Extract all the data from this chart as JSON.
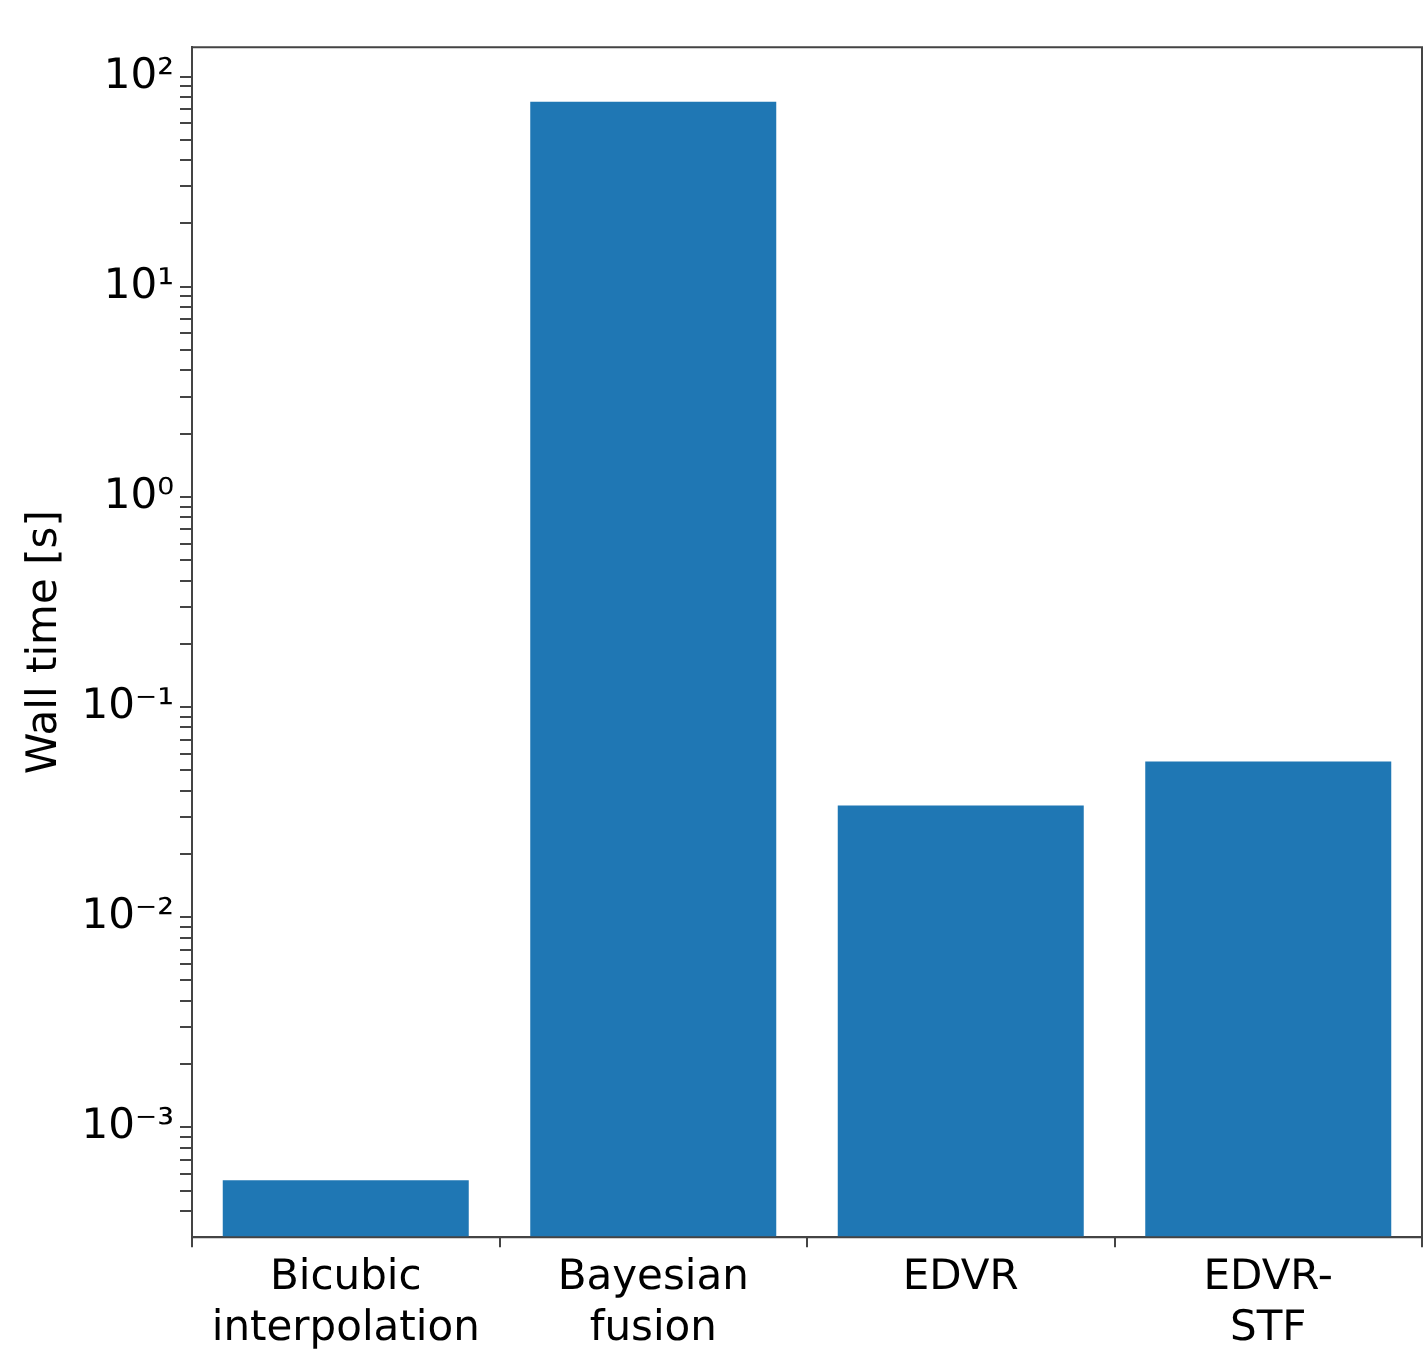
{
  "chart_data": {
    "type": "bar",
    "ylabel": "Wall time [s]",
    "categories": [
      "Bicubic interpolation",
      "Bayesian fusion",
      "EDVR",
      "EDVR-STF"
    ],
    "values": [
      0.00056,
      76,
      0.034,
      0.055
    ],
    "color": "#1f77b4",
    "log": true,
    "ylim": [
      0.00031,
      138
    ],
    "yticks": [
      {
        "value": 0.001,
        "label": "10⁻³"
      },
      {
        "value": 0.01,
        "label": "10⁻²"
      },
      {
        "value": 0.1,
        "label": "10⁻¹"
      },
      {
        "value": 1,
        "label": "10⁰"
      },
      {
        "value": 10,
        "label": "10¹"
      },
      {
        "value": 100,
        "label": "10²"
      },
      {
        "value": 0.0004,
        "label": null
      },
      {
        "value": 0.0005,
        "label": null
      },
      {
        "value": 0.0006,
        "label": null
      },
      {
        "value": 0.0007,
        "label": null
      },
      {
        "value": 0.0008,
        "label": null
      },
      {
        "value": 0.0009,
        "label": null
      },
      {
        "value": 0.002,
        "label": null
      },
      {
        "value": 0.003,
        "label": null
      },
      {
        "value": 0.004,
        "label": null
      },
      {
        "value": 0.005,
        "label": null
      },
      {
        "value": 0.006,
        "label": null
      },
      {
        "value": 0.007,
        "label": null
      },
      {
        "value": 0.008,
        "label": null
      },
      {
        "value": 0.009,
        "label": null
      },
      {
        "value": 0.02,
        "label": null
      },
      {
        "value": 0.03,
        "label": null
      },
      {
        "value": 0.04,
        "label": null
      },
      {
        "value": 0.05,
        "label": null
      },
      {
        "value": 0.06,
        "label": null
      },
      {
        "value": 0.07,
        "label": null
      },
      {
        "value": 0.08,
        "label": null
      },
      {
        "value": 0.09,
        "label": null
      },
      {
        "value": 0.2,
        "label": null
      },
      {
        "value": 0.3,
        "label": null
      },
      {
        "value": 0.4,
        "label": null
      },
      {
        "value": 0.5,
        "label": null
      },
      {
        "value": 0.6,
        "label": null
      },
      {
        "value": 0.7,
        "label": null
      },
      {
        "value": 0.8,
        "label": null
      },
      {
        "value": 0.9,
        "label": null
      },
      {
        "value": 2,
        "label": null
      },
      {
        "value": 3,
        "label": null
      },
      {
        "value": 4,
        "label": null
      },
      {
        "value": 5,
        "label": null
      },
      {
        "value": 6,
        "label": null
      },
      {
        "value": 7,
        "label": null
      },
      {
        "value": 8,
        "label": null
      },
      {
        "value": 9,
        "label": null
      },
      {
        "value": 20,
        "label": null
      },
      {
        "value": 30,
        "label": null
      },
      {
        "value": 40,
        "label": null
      },
      {
        "value": 50,
        "label": null
      },
      {
        "value": 60,
        "label": null
      },
      {
        "value": 70,
        "label": null
      },
      {
        "value": 80,
        "label": null
      },
      {
        "value": 90,
        "label": null
      }
    ],
    "grid": false,
    "legend": false
  }
}
